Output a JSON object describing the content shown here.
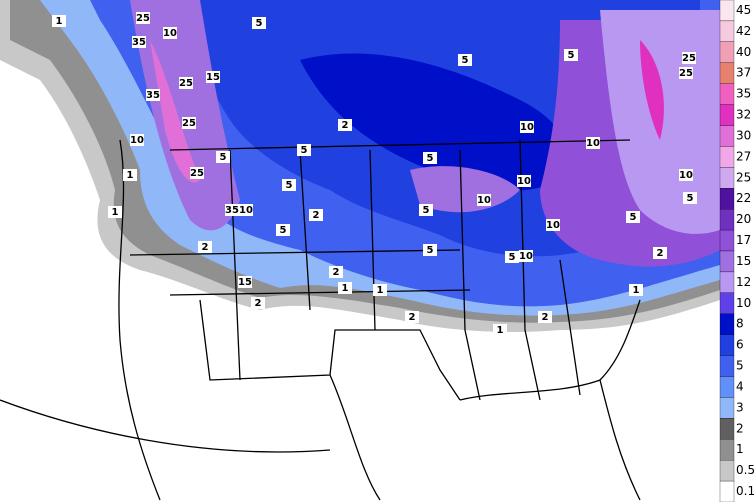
{
  "legend": {
    "items": [
      {
        "label": 45,
        "color": "#fbe6f0"
      },
      {
        "label": 42,
        "color": "#f5c9de"
      },
      {
        "label": 40,
        "color": "#f0a0b4"
      },
      {
        "label": 37,
        "color": "#e88070"
      },
      {
        "label": 35,
        "color": "#f060c0"
      },
      {
        "label": 32,
        "color": "#e030c0"
      },
      {
        "label": 30,
        "color": "#e070d8"
      },
      {
        "label": 27,
        "color": "#f0a8e8"
      },
      {
        "label": 25,
        "color": "#d0a8f0"
      },
      {
        "label": 22,
        "color": "#5010a0"
      },
      {
        "label": 20,
        "color": "#7030c0"
      },
      {
        "label": 17,
        "color": "#9050d8"
      },
      {
        "label": 15,
        "color": "#a070e0"
      },
      {
        "label": 12,
        "color": "#b898f0"
      },
      {
        "label": 10,
        "color": "#6040e8"
      },
      {
        "label": 8,
        "color": "#0010c8"
      },
      {
        "label": 6,
        "color": "#2040e0"
      },
      {
        "label": 5,
        "color": "#4060f0"
      },
      {
        "label": 4,
        "color": "#6090f8"
      },
      {
        "label": 3,
        "color": "#90b8f8"
      },
      {
        "label": 2,
        "color": "#606060"
      },
      {
        "label": 1,
        "color": "#909090"
      },
      {
        "label": 0.5,
        "color": "#c8c8c8"
      },
      {
        "label": 0.1,
        "color": "#ffffff"
      }
    ]
  },
  "map_labels": [
    1,
    25,
    10,
    35,
    5,
    5,
    5,
    25,
    25,
    15,
    25,
    35,
    25,
    10,
    2,
    5,
    10,
    10,
    5,
    5,
    25,
    1,
    10,
    10,
    10,
    5,
    2,
    35,
    10,
    1,
    5,
    5,
    5,
    10,
    5,
    2,
    5,
    5,
    10,
    2,
    2,
    15,
    1,
    1,
    2,
    2,
    1,
    2,
    1
  ]
}
